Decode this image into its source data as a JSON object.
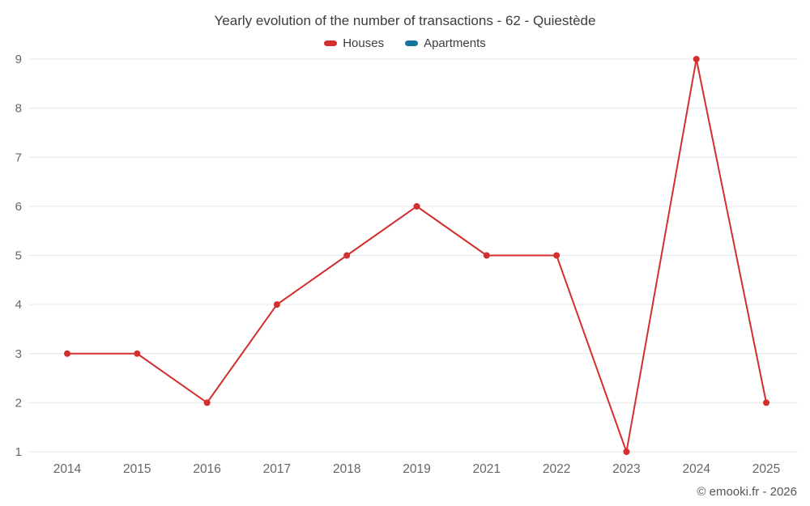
{
  "chart_data": {
    "type": "line",
    "title": "Yearly evolution of the number of transactions - 62 - Quiestède",
    "categories": [
      "2014",
      "2015",
      "2016",
      "2017",
      "2018",
      "2019",
      "2021",
      "2022",
      "2023",
      "2024",
      "2025"
    ],
    "series": [
      {
        "name": "Houses",
        "color": "#d32f2f",
        "values": [
          3,
          3,
          2,
          4,
          5,
          6,
          5,
          5,
          1,
          9,
          2
        ]
      },
      {
        "name": "Apartments",
        "color": "#15749c",
        "values": []
      }
    ],
    "xlabel": "",
    "ylabel": "",
    "ylim": [
      1,
      9
    ],
    "yticks": [
      1,
      2,
      3,
      4,
      5,
      6,
      7,
      8,
      9
    ],
    "grid": "horizontal",
    "gridline_color": "#e6e6e6",
    "axis_label_color": "#666666",
    "legend_position": "top"
  },
  "footer": {
    "copyright": "© emooki.fr - 2026"
  }
}
